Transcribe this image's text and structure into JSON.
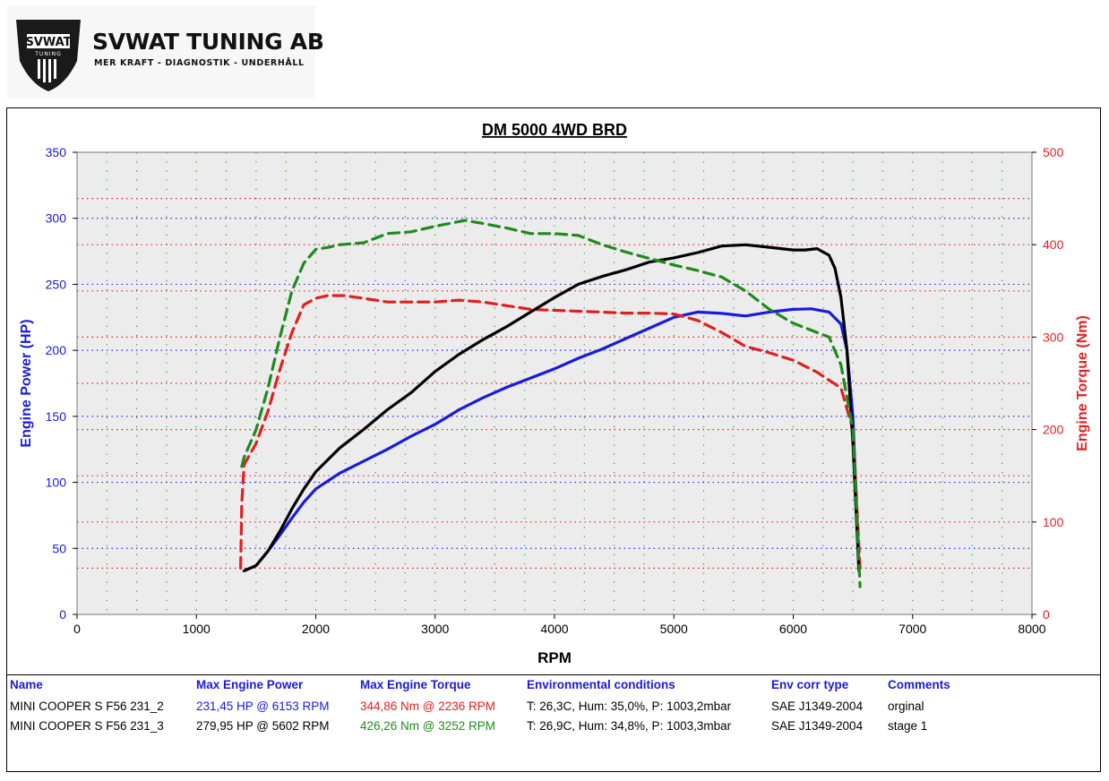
{
  "logo": {
    "name": "SVWAT TUNING AB",
    "tagline": "MER KRAFT - DIAGNOSTIK - UNDERHÅLL",
    "badge_top": "SVWAT",
    "badge_sub": "TUNING"
  },
  "colors": {
    "power": "#1a1adc",
    "torque": "#e02020",
    "stage": "#000000",
    "stage_torque": "#1e8a1e"
  },
  "chart_data": {
    "type": "line",
    "title": "DM 5000 4WD BRD",
    "xlabel": "RPM",
    "ylabel": "Engine Power (HP)",
    "y2label": "Engine Torque (Nm)",
    "xlim": [
      0,
      8000
    ],
    "ylim": [
      0,
      350
    ],
    "y2lim": [
      0,
      500
    ],
    "x_ticks": [
      "0",
      "1000",
      "2000",
      "3000",
      "4000",
      "5000",
      "6000",
      "7000",
      "8000"
    ],
    "y_ticks": [
      "0",
      "50",
      "100",
      "150",
      "200",
      "250",
      "300",
      "350"
    ],
    "y2_ticks": [
      "0",
      "100",
      "200",
      "300",
      "400",
      "500"
    ],
    "grid": true,
    "series": [
      {
        "name": "MINI COOPER S F56 231_2",
        "quantity": "power",
        "style": "solid",
        "color": "#1a1adc",
        "x": [
          1400,
          1500,
          1600,
          1700,
          1800,
          1900,
          2000,
          2200,
          2400,
          2600,
          2800,
          3000,
          3200,
          3400,
          3600,
          3800,
          4000,
          4200,
          4400,
          4600,
          4800,
          5000,
          5200,
          5400,
          5600,
          5800,
          6000,
          6153,
          6300,
          6400,
          6450,
          6500,
          6550
        ],
        "y": [
          33,
          37,
          48,
          60,
          73,
          85,
          95,
          107,
          116,
          125,
          135,
          144,
          155,
          164,
          172,
          179,
          186,
          194,
          201,
          209,
          217,
          225,
          229,
          228,
          226,
          229,
          231,
          231.45,
          229,
          220,
          200,
          150,
          40
        ]
      },
      {
        "name": "MINI COOPER S F56 231_2",
        "quantity": "torque",
        "style": "dashed",
        "color": "#e02020",
        "x": [
          1370,
          1380,
          1400,
          1500,
          1600,
          1700,
          1800,
          1900,
          2000,
          2100,
          2236,
          2400,
          2600,
          2800,
          3000,
          3200,
          3400,
          3600,
          3800,
          4000,
          4200,
          4400,
          4600,
          4800,
          5000,
          5200,
          5400,
          5600,
          5800,
          6000,
          6200,
          6400,
          6500,
          6560
        ],
        "y": [
          50,
          120,
          162,
          185,
          220,
          265,
          305,
          335,
          342,
          345,
          344.86,
          342,
          338,
          338,
          338,
          340,
          338,
          334,
          330,
          329,
          328,
          327,
          326,
          326,
          325,
          318,
          305,
          290,
          283,
          275,
          262,
          245,
          200,
          50
        ]
      },
      {
        "name": "MINI COOPER S F56 231_3",
        "quantity": "power",
        "style": "solid",
        "color": "#000000",
        "x": [
          1400,
          1500,
          1600,
          1700,
          1800,
          1900,
          2000,
          2200,
          2400,
          2600,
          2800,
          3000,
          3200,
          3400,
          3600,
          3800,
          4000,
          4200,
          4400,
          4600,
          4800,
          5000,
          5200,
          5400,
          5602,
          5800,
          6000,
          6100,
          6200,
          6300,
          6350,
          6400,
          6450,
          6500,
          6550
        ],
        "y": [
          33,
          37,
          48,
          63,
          80,
          95,
          108,
          126,
          140,
          155,
          168,
          184,
          197,
          208,
          218,
          229,
          240,
          250,
          256,
          261,
          267,
          270,
          274,
          279,
          279.95,
          278,
          276,
          276,
          277,
          272,
          262,
          240,
          200,
          130,
          33
        ]
      },
      {
        "name": "MINI COOPER S F56 231_3",
        "quantity": "torque",
        "style": "dashed",
        "color": "#1e8a1e",
        "x": [
          1380,
          1400,
          1500,
          1600,
          1700,
          1800,
          1900,
          2000,
          2100,
          2200,
          2400,
          2600,
          2800,
          3000,
          3252,
          3400,
          3600,
          3800,
          4000,
          4200,
          4400,
          4600,
          4800,
          5000,
          5200,
          5400,
          5600,
          5800,
          6000,
          6200,
          6300,
          6400,
          6500,
          6560
        ],
        "y": [
          160,
          170,
          200,
          245,
          300,
          350,
          380,
          395,
          397,
          400,
          402,
          412,
          414,
          420,
          426.26,
          423,
          418,
          412,
          412,
          410,
          400,
          392,
          385,
          378,
          372,
          365,
          350,
          330,
          315,
          305,
          300,
          270,
          200,
          30
        ]
      }
    ]
  },
  "table": {
    "headers": [
      "Name",
      "Max Engine Power",
      "Max Engine Torque",
      "Environmental conditions",
      "Env corr type",
      "Comments"
    ],
    "rows": [
      [
        "MINI COOPER S F56 231_2",
        "231,45 HP @ 6153 RPM",
        "344,86 Nm @ 2236 RPM",
        "T: 26,3C, Hum: 35,0%, P: 1003,2mbar",
        "SAE J1349-2004",
        "orginal"
      ],
      [
        "MINI COOPER S F56 231_3",
        "279,95 HP @ 5602 RPM",
        "426,26 Nm @ 3252 RPM",
        "T: 26,9C, Hum: 34,8%, P: 1003,3mbar",
        "SAE J1349-2004",
        "stage 1"
      ]
    ]
  }
}
